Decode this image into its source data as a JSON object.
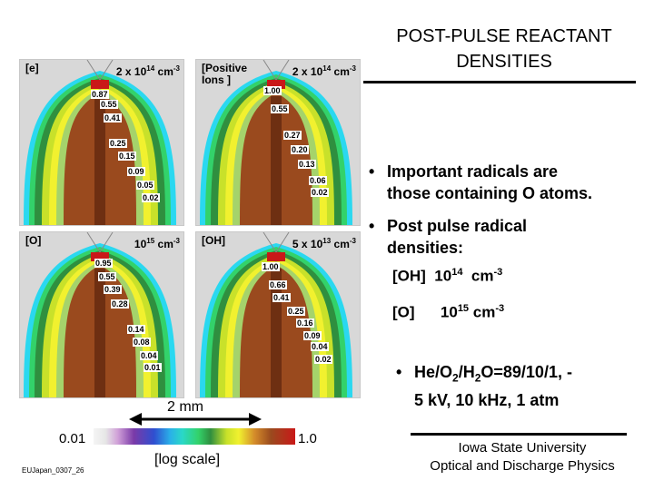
{
  "title": {
    "line1": "POST-PULSE REACTANT",
    "line2": "DENSITIES"
  },
  "bullets": [
    {
      "line1": "Important radicals are",
      "line2": "those containing O atoms."
    },
    {
      "line1": "Post pulse radical",
      "line2": "densities:"
    }
  ],
  "densities": {
    "oh": {
      "species": "[OH]",
      "base": "10",
      "exp": "14",
      "unit": "cm",
      "unit_exp": "-3"
    },
    "o": {
      "species": "[O]",
      "base": "10",
      "exp": "15",
      "unit": "cm",
      "unit_exp": "-3"
    }
  },
  "conditions": {
    "p1": "He/O",
    "s1": "2",
    "p2": "/H",
    "s2": "2",
    "p3": "O=89/10/1, -",
    "line2": "5 kV, 10 kHz, 1 atm"
  },
  "panels": [
    {
      "species": "[e]",
      "species2": "",
      "max_base": "2 x 10",
      "max_exp": "14",
      "unit_exp": "cm-3",
      "contours": [
        "0.87",
        "0.55",
        "0.41",
        "0.25",
        "0.15",
        "0.09",
        "0.05",
        "0.02"
      ]
    },
    {
      "species": "[Positive",
      "species2": "Ions ]",
      "max_base": "2 x 10",
      "max_exp": "14",
      "unit_exp": "cm-3",
      "contours": [
        "1.00",
        "0.55",
        "0.27",
        "0.20",
        "0.13",
        "0.06",
        "0.02"
      ]
    },
    {
      "species": "[O]",
      "species2": "",
      "max_base": "10",
      "max_exp": "15",
      "unit_exp": "cm-3",
      "contours": [
        "0.95",
        "0.55",
        "0.39",
        "0.28",
        "0.14",
        "0.08",
        "0.04",
        "0.01"
      ]
    },
    {
      "species": "[OH]",
      "species2": "",
      "max_base": "5 x 10",
      "max_exp": "13",
      "unit_exp": "cm-3",
      "contours": [
        "1.00",
        "0.66",
        "0.41",
        "0.25",
        "0.16",
        "0.09",
        "0.04",
        "0.02"
      ]
    }
  ],
  "scale": {
    "length": "2 mm",
    "min": "0.01",
    "max": "1.0",
    "label": "[log scale]"
  },
  "slide_id": "EUJapan_0307_26",
  "institution": {
    "line1": "Iowa State University",
    "line2": "Optical and Discharge Physics"
  },
  "colors": {
    "band_outer": "#2ad8f0",
    "band2": "#33d26a",
    "band3": "#2f8f3f",
    "band4": "#c8e12a",
    "band5": "#f1f12f",
    "band6": "#a5d36b",
    "core": "#9a4a1e",
    "core_dark": "#6e2f12",
    "peak": "#c91818"
  }
}
